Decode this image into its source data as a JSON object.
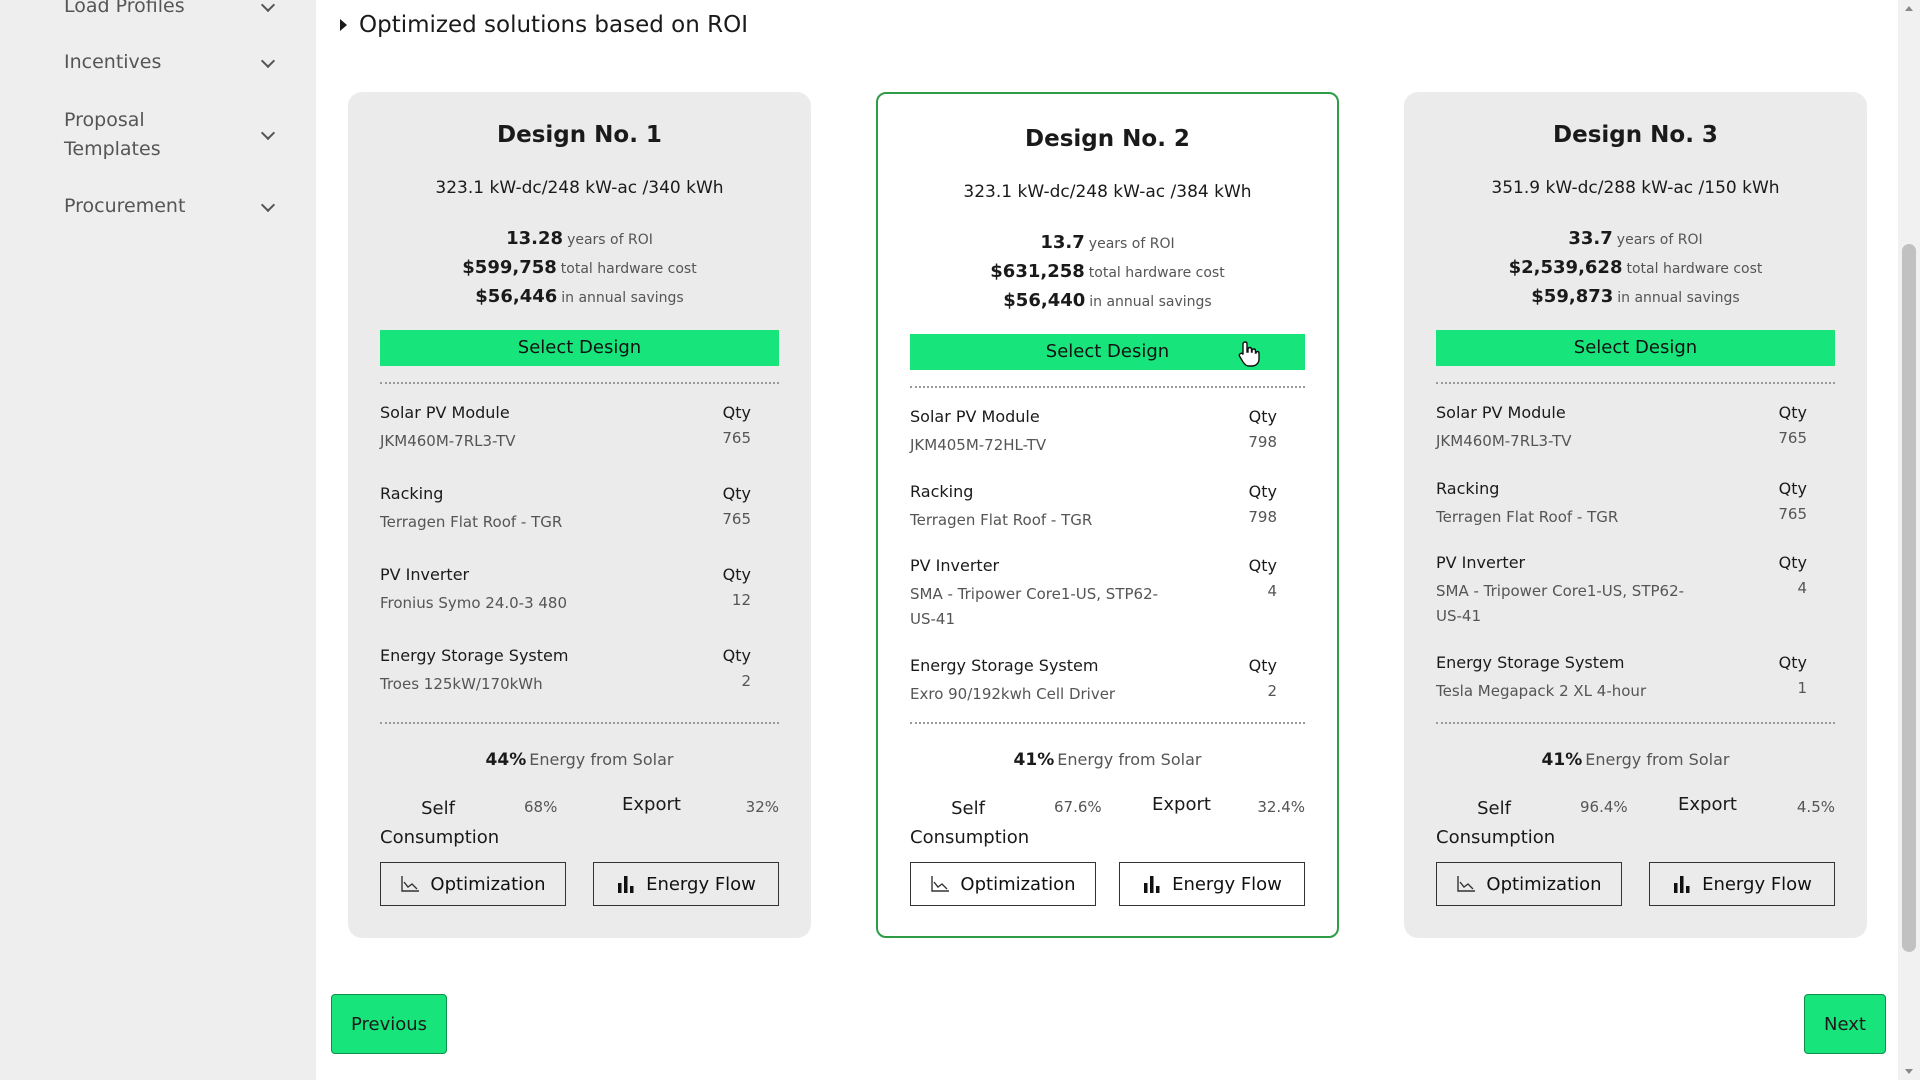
{
  "sidebar": {
    "items": [
      {
        "label": "Load Profiles"
      },
      {
        "label": "Incentives"
      },
      {
        "label": "Proposal Templates"
      },
      {
        "label": "Procurement"
      }
    ]
  },
  "section": {
    "title": "Optimized solutions based on ROI"
  },
  "designs": [
    {
      "title": "Design No. 1",
      "spec": "323.1 kW-dc/248 kW-ac /340 kWh",
      "roi_value": "13.28",
      "roi_label": "years of ROI",
      "cost_value": "$599,758",
      "cost_label": "total hardware cost",
      "savings_value": "$56,446",
      "savings_label": "in annual savings",
      "select_label": "Select Design",
      "components": [
        {
          "name": "Solar PV Module",
          "qty_header": "Qty",
          "model": "JKM460M-7RL3-TV",
          "qty": "765"
        },
        {
          "name": "Racking",
          "qty_header": "Qty",
          "model": "Terragen Flat Roof - TGR",
          "qty": "765"
        },
        {
          "name": "PV Inverter",
          "qty_header": "Qty",
          "model": "Fronius Symo 24.0-3 480",
          "qty": "12"
        },
        {
          "name": "Energy Storage System",
          "qty_header": "Qty",
          "model": "Troes 125kW/170kWh",
          "qty": "2"
        }
      ],
      "energy_pct": "44%",
      "energy_label": "Energy from Solar",
      "self_label": "Self Consumption",
      "self_value": "68%",
      "export_label": "Export",
      "export_value": "32%",
      "optimization_label": "Optimization",
      "energy_flow_label": "Energy Flow"
    },
    {
      "title": "Design No. 2",
      "spec": "323.1 kW-dc/248 kW-ac /384 kWh",
      "roi_value": "13.7",
      "roi_label": "years of ROI",
      "cost_value": "$631,258",
      "cost_label": "total hardware cost",
      "savings_value": "$56,440",
      "savings_label": "in annual savings",
      "select_label": "Select Design",
      "components": [
        {
          "name": "Solar PV Module",
          "qty_header": "Qty",
          "model": "JKM405M-72HL-TV",
          "qty": "798"
        },
        {
          "name": "Racking",
          "qty_header": "Qty",
          "model": "Terragen Flat Roof - TGR",
          "qty": "798"
        },
        {
          "name": "PV Inverter",
          "qty_header": "Qty",
          "model": "SMA - Tripower Core1-US, STP62-US-41",
          "qty": "4"
        },
        {
          "name": "Energy Storage System",
          "qty_header": "Qty",
          "model": "Exro 90/192kwh Cell Driver",
          "qty": "2"
        }
      ],
      "energy_pct": "41%",
      "energy_label": "Energy from Solar",
      "self_label": "Self Consumption",
      "self_value": "67.6%",
      "export_label": "Export",
      "export_value": "32.4%",
      "optimization_label": "Optimization",
      "energy_flow_label": "Energy Flow"
    },
    {
      "title": "Design No. 3",
      "spec": "351.9 kW-dc/288 kW-ac /150 kWh",
      "roi_value": "33.7",
      "roi_label": "years of ROI",
      "cost_value": "$2,539,628",
      "cost_label": "total hardware cost",
      "savings_value": "$59,873",
      "savings_label": "in annual savings",
      "select_label": "Select Design",
      "components": [
        {
          "name": "Solar PV Module",
          "qty_header": "Qty",
          "model": "JKM460M-7RL3-TV",
          "qty": "765"
        },
        {
          "name": "Racking",
          "qty_header": "Qty",
          "model": "Terragen Flat Roof - TGR",
          "qty": "765"
        },
        {
          "name": "PV Inverter",
          "qty_header": "Qty",
          "model": "SMA - Tripower Core1-US, STP62-US-41",
          "qty": "4"
        },
        {
          "name": "Energy Storage System",
          "qty_header": "Qty",
          "model": "Tesla Megapack 2 XL 4-hour",
          "qty": "1"
        }
      ],
      "energy_pct": "41%",
      "energy_label": "Energy from Solar",
      "self_label": "Self Consumption",
      "self_value": "96.4%",
      "export_label": "Export",
      "export_value": "4.5%",
      "optimization_label": "Optimization",
      "energy_flow_label": "Energy Flow"
    }
  ],
  "nav": {
    "previous_label": "Previous",
    "next_label": "Next"
  },
  "colors": {
    "accent_green": "#17e57b",
    "selected_border": "#2e9b47",
    "card_bg": "#ebebeb",
    "sidebar_bg": "#eeeeee"
  }
}
